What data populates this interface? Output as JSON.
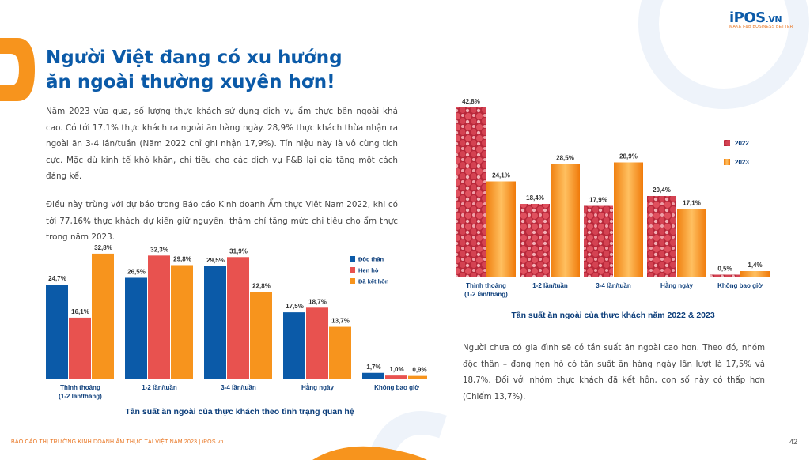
{
  "title": {
    "line1": "Người Việt đang có xu hướng",
    "line2": "ăn ngoài thường xuyên hơn!"
  },
  "logo": {
    "main": "iPOS",
    "domain": ".VN",
    "tagline": "MAKE F&B BUSINESS BETTER"
  },
  "paragraphs": {
    "p1": "Năm 2023 vừa qua, số lượng thực khách sử dụng dịch vụ ẩm thực bên ngoài khá cao. Có tới 17,1% thực khách ra ngoài ăn hàng ngày. 28,9% thực khách thừa nhận ra ngoài ăn 3-4 lần/tuần (Năm 2022 chỉ ghi nhận 17,9%). Tín hiệu này là vô cùng tích cực. Mặc dù kinh tế khó khăn, chi tiêu cho các dịch vụ F&B lại gia tăng một cách đáng kể.",
    "p2": "Điều này trùng với dự báo trong Báo cáo Kinh doanh Ẩm thực Việt Nam 2022, khi có tới 77,16% thực khách dự kiến giữ nguyên, thậm chí tăng mức chi tiêu cho ẩm thực trong năm 2023.",
    "p3": "Người chưa có gia đình sẽ có tần suất ăn ngoài cao hơn. Theo đó, nhóm độc thân – đang hẹn hò có tần suất ăn hàng ngày lần lượt là 17,5% và 18,7%. Đối với nhóm thực khách đã kết hôn, con số này có thấp hơn (Chiếm 13,7%)."
  },
  "footer": "BÁO CÁO THỊ TRƯỜNG KINH DOANH ẨM THỰC TẠI VIỆT NAM 2023 | iPOS.vn",
  "page_number": "42",
  "colors": {
    "blue": "#0b5aa8",
    "red": "#e8524f",
    "orange": "#f7941d",
    "raspberry": "#c9303f",
    "accent": "#e8731e"
  },
  "chart_data": [
    {
      "type": "bar",
      "title": "Tần suất ăn ngoài của thực khách theo tình trạng quan hệ",
      "categories": [
        [
          "Thỉnh thoảng",
          "(1-2 lần/tháng)"
        ],
        [
          "1-2 lần/tuần"
        ],
        [
          "3-4 lần/tuần"
        ],
        [
          "Hằng ngày"
        ],
        [
          "Không bao giờ"
        ]
      ],
      "series": [
        {
          "name": "Độc thân",
          "color": "#0b5aa8",
          "values": [
            24.7,
            26.5,
            29.5,
            17.5,
            1.7
          ],
          "labels": [
            "24,7%",
            "26,5%",
            "29,5%",
            "17,5%",
            "1,7%"
          ]
        },
        {
          "name": "Hẹn hò",
          "color": "#e8524f",
          "values": [
            16.1,
            32.3,
            31.9,
            18.7,
            1.0
          ],
          "labels": [
            "16,1%",
            "32,3%",
            "31,9%",
            "18,7%",
            "1,0%"
          ]
        },
        {
          "name": "Đã kết hôn",
          "color": "#f7941d",
          "values": [
            32.8,
            29.8,
            22.8,
            13.7,
            0.9
          ],
          "labels": [
            "32,8%",
            "29,8%",
            "22,8%",
            "13,7%",
            "0,9%"
          ]
        }
      ],
      "legend": "top-right"
    },
    {
      "type": "bar",
      "title": "Tần suất ăn ngoài của thực khách năm 2022 & 2023",
      "categories": [
        [
          "Thỉnh thoảng",
          "(1-2 lần/tháng)"
        ],
        [
          "1-2 lần/tuần"
        ],
        [
          "3-4 lần/tuần"
        ],
        [
          "Hằng ngày"
        ],
        [
          "Không bao giờ"
        ]
      ],
      "series": [
        {
          "name": "2022",
          "color": "#c9303f",
          "values": [
            42.8,
            18.4,
            17.9,
            20.4,
            0.5
          ],
          "labels": [
            "42,8%",
            "18,4%",
            "17,9%",
            "20,4%",
            "0,5%"
          ]
        },
        {
          "name": "2023",
          "color": "#f7941d",
          "values": [
            24.1,
            28.5,
            28.9,
            17.1,
            1.4
          ],
          "labels": [
            "24,1%",
            "28,5%",
            "28,9%",
            "17,1%",
            "1,4%"
          ]
        }
      ],
      "legend": "right"
    }
  ]
}
